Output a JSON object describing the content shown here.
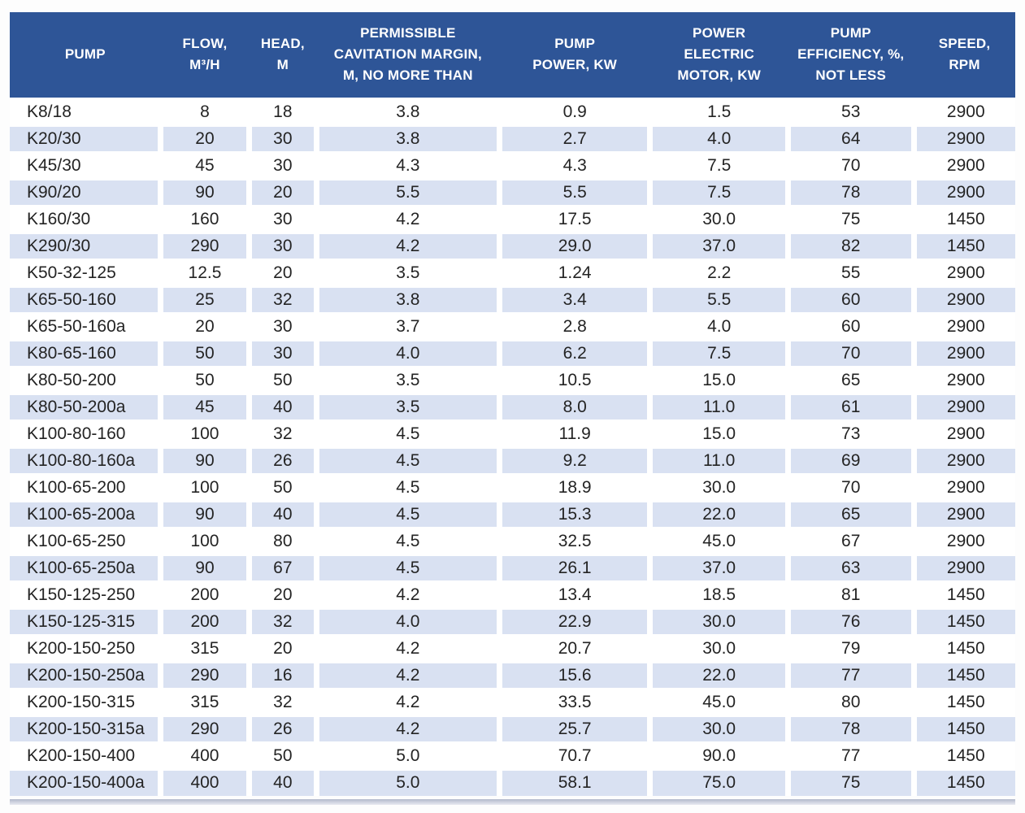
{
  "style": {
    "header_bg": "#2E5597",
    "header_text_color": "#FFFFFF",
    "stripe_color": "#D9E1F2",
    "body_text_color": "#242424",
    "page_bg": "#FDFDFD"
  },
  "chart_data": {
    "type": "table",
    "layout_hints": {
      "header_rows": 1,
      "zebra_striping": "even rows light blue",
      "column_widths_percent": [
        15.0,
        8.8,
        6.7,
        18.2,
        15.0,
        13.7,
        12.5,
        10.1
      ]
    },
    "columns": [
      "PUMP",
      "FLOW,\nM³/H",
      "HEAD,\nM",
      "PERMISSIBLE\nCAVITATION MARGIN,\nM, NO MORE THAN",
      "PUMP\nPOWER, KW",
      "POWER\nELECTRIC\nMOTOR, KW",
      "PUMP\nEFFICIENCY, %,\nNOT LESS",
      "SPEED,\nRPM"
    ],
    "rows": [
      [
        "K8/18",
        "8",
        "18",
        "3.8",
        "0.9",
        "1.5",
        "53",
        "2900"
      ],
      [
        "K20/30",
        "20",
        "30",
        "3.8",
        "2.7",
        "4.0",
        "64",
        "2900"
      ],
      [
        "K45/30",
        "45",
        "30",
        "4.3",
        "4.3",
        "7.5",
        "70",
        "2900"
      ],
      [
        "K90/20",
        "90",
        "20",
        "5.5",
        "5.5",
        "7.5",
        "78",
        "2900"
      ],
      [
        "K160/30",
        "160",
        "30",
        "4.2",
        "17.5",
        "30.0",
        "75",
        "1450"
      ],
      [
        "K290/30",
        "290",
        "30",
        "4.2",
        "29.0",
        "37.0",
        "82",
        "1450"
      ],
      [
        "K50-32-125",
        "12.5",
        "20",
        "3.5",
        "1.24",
        "2.2",
        "55",
        "2900"
      ],
      [
        "K65-50-160",
        "25",
        "32",
        "3.8",
        "3.4",
        "5.5",
        "60",
        "2900"
      ],
      [
        "K65-50-160a",
        "20",
        "30",
        "3.7",
        "2.8",
        "4.0",
        "60",
        "2900"
      ],
      [
        "K80-65-160",
        "50",
        "30",
        "4.0",
        "6.2",
        "7.5",
        "70",
        "2900"
      ],
      [
        "K80-50-200",
        "50",
        "50",
        "3.5",
        "10.5",
        "15.0",
        "65",
        "2900"
      ],
      [
        "K80-50-200a",
        "45",
        "40",
        "3.5",
        "8.0",
        "11.0",
        "61",
        "2900"
      ],
      [
        "K100-80-160",
        "100",
        "32",
        "4.5",
        "11.9",
        "15.0",
        "73",
        "2900"
      ],
      [
        "K100-80-160a",
        "90",
        "26",
        "4.5",
        "9.2",
        "11.0",
        "69",
        "2900"
      ],
      [
        "K100-65-200",
        "100",
        "50",
        "4.5",
        "18.9",
        "30.0",
        "70",
        "2900"
      ],
      [
        "K100-65-200a",
        "90",
        "40",
        "4.5",
        "15.3",
        "22.0",
        "65",
        "2900"
      ],
      [
        "K100-65-250",
        "100",
        "80",
        "4.5",
        "32.5",
        "45.0",
        "67",
        "2900"
      ],
      [
        "K100-65-250a",
        "90",
        "67",
        "4.5",
        "26.1",
        "37.0",
        "63",
        "2900"
      ],
      [
        "K150-125-250",
        "200",
        "20",
        "4.2",
        "13.4",
        "18.5",
        "81",
        "1450"
      ],
      [
        "K150-125-315",
        "200",
        "32",
        "4.0",
        "22.9",
        "30.0",
        "76",
        "1450"
      ],
      [
        "K200-150-250",
        "315",
        "20",
        "4.2",
        "20.7",
        "30.0",
        "79",
        "1450"
      ],
      [
        "K200-150-250a",
        "290",
        "16",
        "4.2",
        "15.6",
        "22.0",
        "77",
        "1450"
      ],
      [
        "K200-150-315",
        "315",
        "32",
        "4.2",
        "33.5",
        "45.0",
        "80",
        "1450"
      ],
      [
        "K200-150-315a",
        "290",
        "26",
        "4.2",
        "25.7",
        "30.0",
        "78",
        "1450"
      ],
      [
        "K200-150-400",
        "400",
        "50",
        "5.0",
        "70.7",
        "90.0",
        "77",
        "1450"
      ],
      [
        "K200-150-400a",
        "400",
        "40",
        "5.0",
        "58.1",
        "75.0",
        "75",
        "1450"
      ]
    ]
  }
}
